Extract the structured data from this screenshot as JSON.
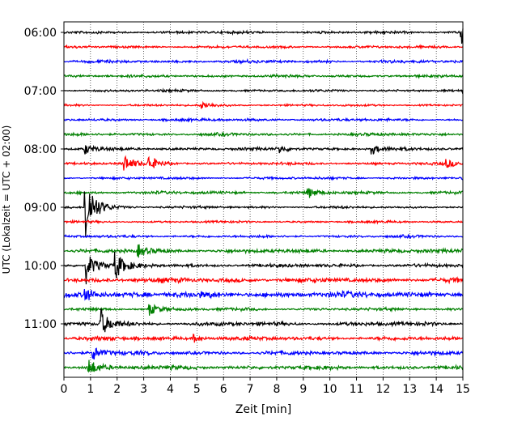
{
  "chart_data": {
    "type": "line",
    "chart_style": "seismogram-helicorder",
    "xlabel": "Zeit  [min]",
    "ylabel": "UTC (Lokalzeit = UTC + 02:00)",
    "xlim": [
      0,
      15
    ],
    "x_ticks": [
      "0",
      "1",
      "2",
      "3",
      "4",
      "5",
      "6",
      "7",
      "8",
      "9",
      "10",
      "11",
      "12",
      "13",
      "14",
      "15"
    ],
    "y_tick_labels": [
      "06:00",
      "07:00",
      "08:00",
      "09:00",
      "10:00",
      "11:00"
    ],
    "grid": "vertical-dotted",
    "trace_interval_minutes": 15,
    "first_trace": "06:00",
    "trace_count": 24,
    "trace_colors": [
      "#000000",
      "#ff0000",
      "#0000ff",
      "#008000"
    ],
    "events": [
      {
        "trace": "06:00",
        "minute": 14.95,
        "amplitude": 1.3
      },
      {
        "trace": "07:15",
        "minute": 5.2,
        "amplitude": 0.4
      },
      {
        "trace": "08:00",
        "minute": 0.8,
        "amplitude": 0.5
      },
      {
        "trace": "08:00",
        "minute": 8.1,
        "amplitude": 0.4
      },
      {
        "trace": "08:00",
        "minute": 11.6,
        "amplitude": 0.5
      },
      {
        "trace": "08:15",
        "minute": 2.3,
        "amplitude": 0.9
      },
      {
        "trace": "08:15",
        "minute": 3.2,
        "amplitude": 0.8
      },
      {
        "trace": "08:15",
        "minute": 14.4,
        "amplitude": 0.4
      },
      {
        "trace": "08:45",
        "minute": 9.2,
        "amplitude": 0.5
      },
      {
        "trace": "09:00",
        "minute": 0.8,
        "amplitude": 4.4
      },
      {
        "trace": "09:45",
        "minute": 2.8,
        "amplitude": 0.6
      },
      {
        "trace": "10:00",
        "minute": 0.85,
        "amplitude": 1.8
      },
      {
        "trace": "10:00",
        "minute": 1.95,
        "amplitude": 1.5
      },
      {
        "trace": "10:30",
        "minute": 0.8,
        "amplitude": 0.9
      },
      {
        "trace": "10:45",
        "minute": 3.2,
        "amplitude": 0.8
      },
      {
        "trace": "11:00",
        "minute": 1.4,
        "amplitude": 1.5
      },
      {
        "trace": "11:15",
        "minute": 4.9,
        "amplitude": 0.4
      },
      {
        "trace": "11:30",
        "minute": 1.1,
        "amplitude": 0.8
      },
      {
        "trace": "11:45",
        "minute": 0.95,
        "amplitude": 1.0
      }
    ]
  }
}
